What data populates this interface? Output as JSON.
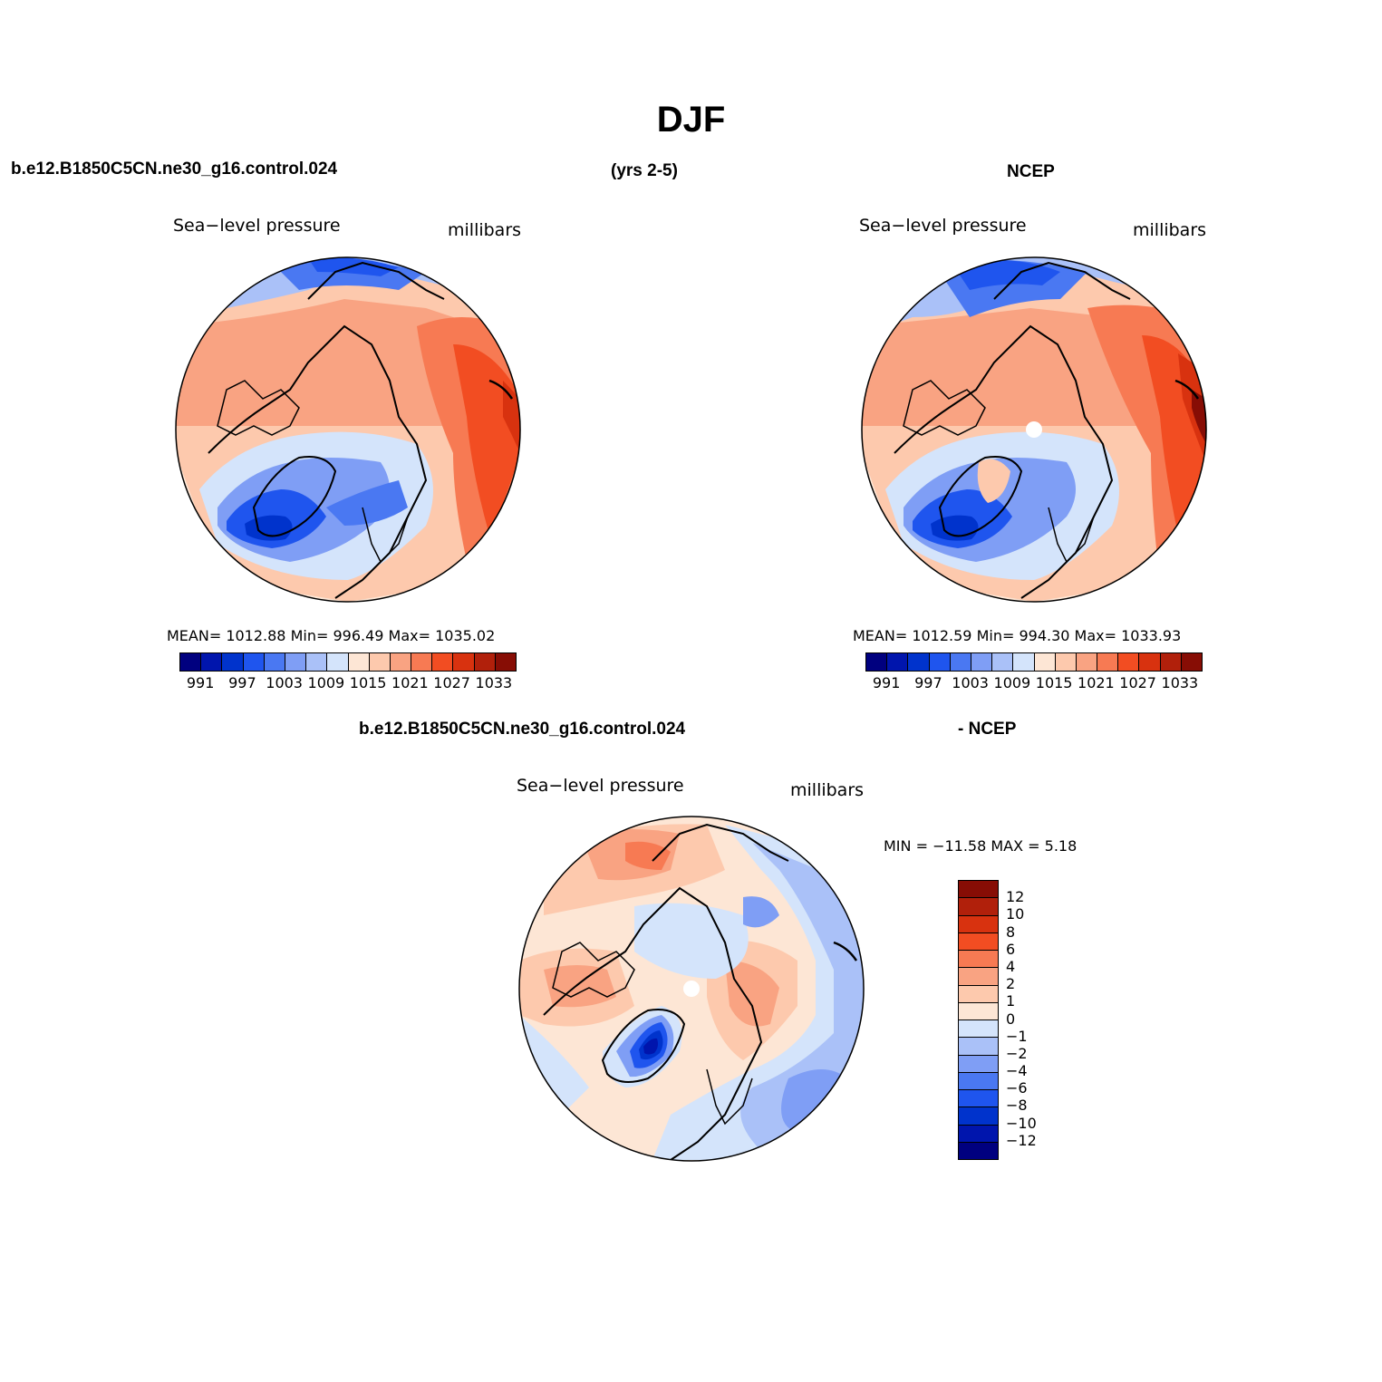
{
  "title": "DJF",
  "top_left_header": "b.e12.B1850C5CN.ne30_g16.control.024",
  "top_center_header": "(yrs 2-5)",
  "top_right_header": "NCEP",
  "bottom_header_left": "b.e12.B1850C5CN.ne30_g16.control.024",
  "bottom_header_right": "- NCEP",
  "panels": {
    "model": {
      "variable": "Sea−level  pressure",
      "units": "millibars",
      "stats": "MEAN=  1012.88    Min=  996.49    Max=  1035.02"
    },
    "obs": {
      "variable": "Sea−level  pressure",
      "units": "millibars",
      "stats": "MEAN=  1012.59    Min=  994.30    Max=  1033.93"
    },
    "diff": {
      "variable": "Sea−level  pressure",
      "units": "millibars",
      "stats": "MIN  =  −11.58  MAX  =     5.18"
    }
  },
  "colorbar_abs": {
    "colors": [
      "#00007f",
      "#0015ad",
      "#0033cc",
      "#1f55ee",
      "#4a78f2",
      "#7f9ef5",
      "#aac1f8",
      "#d4e4fb",
      "#fde6d5",
      "#fdc9ad",
      "#f9a382",
      "#f77a53",
      "#f24d22",
      "#d8320f",
      "#b1200b",
      "#870d05"
    ],
    "labels": [
      "991",
      "997",
      "1003",
      "1009",
      "1015",
      "1021",
      "1027",
      "1033"
    ]
  },
  "colorbar_diff": {
    "colors": [
      "#870d05",
      "#b1200b",
      "#d8320f",
      "#f24d22",
      "#f77a53",
      "#f9a382",
      "#fdc9ad",
      "#fde6d5",
      "#d4e4fb",
      "#aac1f8",
      "#7f9ef5",
      "#4a78f2",
      "#1f55ee",
      "#0033cc",
      "#0015ad",
      "#00007f"
    ],
    "labels": [
      "12",
      "10",
      "8",
      "6",
      "4",
      "2",
      "1",
      "0",
      "−1",
      "−2",
      "−4",
      "−6",
      "−8",
      "−10",
      "−12"
    ]
  }
}
